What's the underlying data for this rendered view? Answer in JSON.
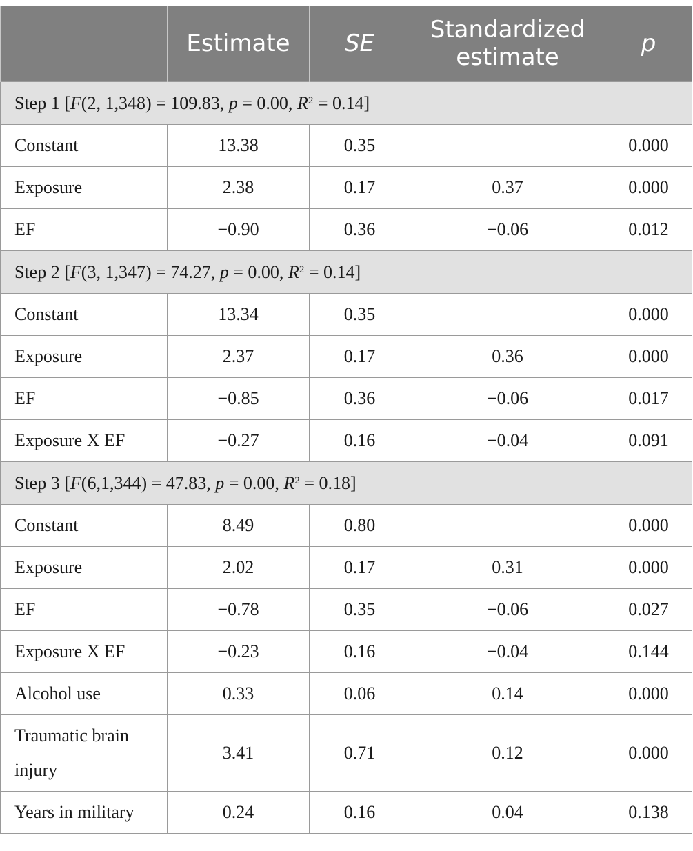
{
  "header": {
    "col0": "",
    "estimate": "Estimate",
    "se": "SE",
    "standardized": "Standardized estimate",
    "p": "p"
  },
  "steps": [
    {
      "title": {
        "prefix": "Step 1 [",
        "F_label": "F",
        "F_args": "(2, 1,348) = 109.83, ",
        "p_label": "p",
        "p_text": " = 0.00, ",
        "R_label": "R",
        "R_sup": "2",
        "R_text": " = 0.14]"
      },
      "rows": [
        {
          "label": "Constant",
          "estimate": "13.38",
          "se": "0.35",
          "std": "",
          "p": "0.000"
        },
        {
          "label": "Exposure",
          "estimate": "2.38",
          "se": "0.17",
          "std": "0.37",
          "p": "0.000"
        },
        {
          "label": "EF",
          "estimate": "−0.90",
          "se": "0.36",
          "std": "−0.06",
          "p": "0.012"
        }
      ]
    },
    {
      "title": {
        "prefix": "Step 2 [",
        "F_label": "F",
        "F_args": "(3, 1,347) = 74.27, ",
        "p_label": "p",
        "p_text": " = 0.00, ",
        "R_label": "R",
        "R_sup": "2",
        "R_text": " = 0.14]"
      },
      "rows": [
        {
          "label": "Constant",
          "estimate": "13.34",
          "se": "0.35",
          "std": "",
          "p": "0.000"
        },
        {
          "label": "Exposure",
          "estimate": "2.37",
          "se": "0.17",
          "std": "0.36",
          "p": "0.000"
        },
        {
          "label": "EF",
          "estimate": "−0.85",
          "se": "0.36",
          "std": "−0.06",
          "p": "0.017"
        },
        {
          "label": "Exposure X EF",
          "estimate": "−0.27",
          "se": "0.16",
          "std": "−0.04",
          "p": "0.091"
        }
      ]
    },
    {
      "title": {
        "prefix": "Step 3 [",
        "F_label": "F",
        "F_args": "(6,1,344) = 47.83, ",
        "p_label": "p",
        "p_text": " = 0.00, ",
        "R_label": "R",
        "R_sup": "2",
        "R_text": " = 0.18]"
      },
      "rows": [
        {
          "label": "Constant",
          "estimate": "8.49",
          "se": "0.80",
          "std": "",
          "p": "0.000"
        },
        {
          "label": "Exposure",
          "estimate": "2.02",
          "se": "0.17",
          "std": "0.31",
          "p": "0.000"
        },
        {
          "label": "EF",
          "estimate": "−0.78",
          "se": "0.35",
          "std": "−0.06",
          "p": "0.027"
        },
        {
          "label": "Exposure X EF",
          "estimate": "−0.23",
          "se": "0.16",
          "std": "−0.04",
          "p": "0.144"
        },
        {
          "label": "Alcohol use",
          "estimate": "0.33",
          "se": "0.06",
          "std": "0.14",
          "p": "0.000"
        },
        {
          "label": "Traumatic brain injury",
          "estimate": "3.41",
          "se": "0.71",
          "std": "0.12",
          "p": "0.000"
        },
        {
          "label": "Years in military",
          "estimate": "0.24",
          "se": "0.16",
          "std": "0.04",
          "p": "0.138"
        }
      ]
    }
  ]
}
